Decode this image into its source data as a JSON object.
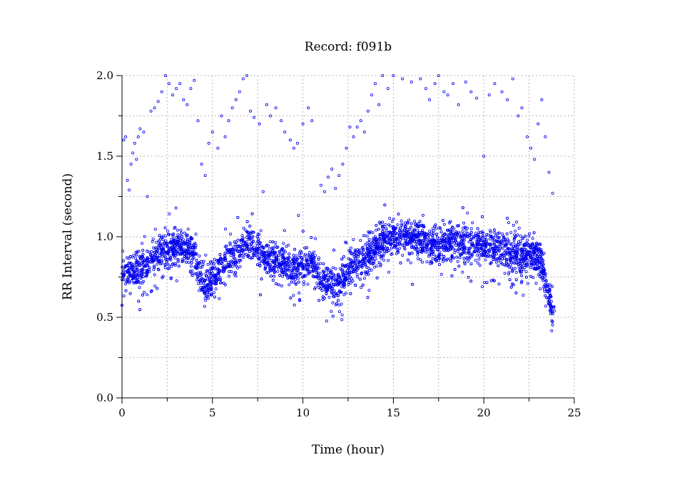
{
  "chart_data": {
    "type": "scatter",
    "title": "Record:  f091b",
    "xlabel": "Time (hour)",
    "ylabel": "RR Interval (second)",
    "xlim": [
      0,
      25
    ],
    "ylim": [
      0,
      2.0
    ],
    "x_ticks": [
      "0",
      "5",
      "10",
      "15",
      "20",
      "25"
    ],
    "y_ticks": [
      "0.0",
      "0.5",
      "1.0",
      "1.5",
      "2.0"
    ],
    "grid": true,
    "marker_color": "#0000ee",
    "series": [
      {
        "trend": [
          [
            0.0,
            0.77
          ],
          [
            0.5,
            0.79
          ],
          [
            1.0,
            0.8
          ],
          [
            1.5,
            0.85
          ],
          [
            2.0,
            0.9
          ],
          [
            2.5,
            0.92
          ],
          [
            3.0,
            0.94
          ],
          [
            3.5,
            0.92
          ],
          [
            4.0,
            0.9
          ],
          [
            4.3,
            0.78
          ],
          [
            4.6,
            0.68
          ],
          [
            5.0,
            0.75
          ],
          [
            5.5,
            0.83
          ],
          [
            6.0,
            0.88
          ],
          [
            6.5,
            0.93
          ],
          [
            7.0,
            0.97
          ],
          [
            7.5,
            0.92
          ],
          [
            8.0,
            0.86
          ],
          [
            8.5,
            0.87
          ],
          [
            9.0,
            0.84
          ],
          [
            9.5,
            0.8
          ],
          [
            10.0,
            0.83
          ],
          [
            10.5,
            0.84
          ],
          [
            11.0,
            0.74
          ],
          [
            11.5,
            0.71
          ],
          [
            12.0,
            0.7
          ],
          [
            12.5,
            0.8
          ],
          [
            13.0,
            0.85
          ],
          [
            13.5,
            0.87
          ],
          [
            14.0,
            0.93
          ],
          [
            14.5,
            0.98
          ],
          [
            15.0,
            1.0
          ],
          [
            15.5,
            1.01
          ],
          [
            16.0,
            0.99
          ],
          [
            16.5,
            0.98
          ],
          [
            17.0,
            0.96
          ],
          [
            17.5,
            0.94
          ],
          [
            18.0,
            0.97
          ],
          [
            18.5,
            0.96
          ],
          [
            19.0,
            0.96
          ],
          [
            19.5,
            0.94
          ],
          [
            20.0,
            0.95
          ],
          [
            20.5,
            0.93
          ],
          [
            21.0,
            0.94
          ],
          [
            21.5,
            0.9
          ],
          [
            22.0,
            0.88
          ],
          [
            22.5,
            0.91
          ],
          [
            23.0,
            0.88
          ],
          [
            23.3,
            0.8
          ],
          [
            23.6,
            0.65
          ],
          [
            23.9,
            0.5
          ]
        ],
        "outliers": [
          [
            0.1,
            1.6
          ],
          [
            0.2,
            1.62
          ],
          [
            0.3,
            1.35
          ],
          [
            0.4,
            1.29
          ],
          [
            0.5,
            1.45
          ],
          [
            0.6,
            1.52
          ],
          [
            0.7,
            1.58
          ],
          [
            0.8,
            1.48
          ],
          [
            0.9,
            1.62
          ],
          [
            1.0,
            1.67
          ],
          [
            1.2,
            1.65
          ],
          [
            1.4,
            1.25
          ],
          [
            1.6,
            1.78
          ],
          [
            1.8,
            1.8
          ],
          [
            2.0,
            1.84
          ],
          [
            2.2,
            1.9
          ],
          [
            2.4,
            2.0
          ],
          [
            2.6,
            1.95
          ],
          [
            2.8,
            1.88
          ],
          [
            3.0,
            1.92
          ],
          [
            3.2,
            1.95
          ],
          [
            3.4,
            1.85
          ],
          [
            3.6,
            1.82
          ],
          [
            3.8,
            1.92
          ],
          [
            4.0,
            1.97
          ],
          [
            4.2,
            1.72
          ],
          [
            4.4,
            1.45
          ],
          [
            4.6,
            1.38
          ],
          [
            4.8,
            1.58
          ],
          [
            5.0,
            1.65
          ],
          [
            5.3,
            1.55
          ],
          [
            5.5,
            1.75
          ],
          [
            5.7,
            1.62
          ],
          [
            5.9,
            1.72
          ],
          [
            6.1,
            1.8
          ],
          [
            6.3,
            1.85
          ],
          [
            6.5,
            1.9
          ],
          [
            6.7,
            1.98
          ],
          [
            6.9,
            2.0
          ],
          [
            7.1,
            1.78
          ],
          [
            7.3,
            1.74
          ],
          [
            7.6,
            1.7
          ],
          [
            7.8,
            1.28
          ],
          [
            8.0,
            1.82
          ],
          [
            8.2,
            1.75
          ],
          [
            8.5,
            1.8
          ],
          [
            8.8,
            1.72
          ],
          [
            9.0,
            1.65
          ],
          [
            9.3,
            1.6
          ],
          [
            9.5,
            1.55
          ],
          [
            9.7,
            1.58
          ],
          [
            10.0,
            1.7
          ],
          [
            10.3,
            1.8
          ],
          [
            10.5,
            1.72
          ],
          [
            11.0,
            1.32
          ],
          [
            11.2,
            1.28
          ],
          [
            11.4,
            1.37
          ],
          [
            11.6,
            1.42
          ],
          [
            11.8,
            1.3
          ],
          [
            12.0,
            1.38
          ],
          [
            12.2,
            1.45
          ],
          [
            12.4,
            1.55
          ],
          [
            12.6,
            1.68
          ],
          [
            12.8,
            1.62
          ],
          [
            13.0,
            1.68
          ],
          [
            13.2,
            1.72
          ],
          [
            13.4,
            1.65
          ],
          [
            13.6,
            1.78
          ],
          [
            13.8,
            1.88
          ],
          [
            14.0,
            1.95
          ],
          [
            14.2,
            1.82
          ],
          [
            14.4,
            2.0
          ],
          [
            14.7,
            1.92
          ],
          [
            15.0,
            2.0
          ],
          [
            15.5,
            1.98
          ],
          [
            16.0,
            1.96
          ],
          [
            16.5,
            1.98
          ],
          [
            16.8,
            1.92
          ],
          [
            17.0,
            1.85
          ],
          [
            17.3,
            1.95
          ],
          [
            17.5,
            2.0
          ],
          [
            17.8,
            1.9
          ],
          [
            18.0,
            1.88
          ],
          [
            18.3,
            1.95
          ],
          [
            18.6,
            1.82
          ],
          [
            19.0,
            1.96
          ],
          [
            19.3,
            1.9
          ],
          [
            19.6,
            1.86
          ],
          [
            20.0,
            1.5
          ],
          [
            20.3,
            1.88
          ],
          [
            20.6,
            1.95
          ],
          [
            21.0,
            1.9
          ],
          [
            21.3,
            1.85
          ],
          [
            21.6,
            1.98
          ],
          [
            21.9,
            1.75
          ],
          [
            22.1,
            1.8
          ],
          [
            22.4,
            1.62
          ],
          [
            22.6,
            1.55
          ],
          [
            22.8,
            1.48
          ],
          [
            23.0,
            1.7
          ],
          [
            23.2,
            1.85
          ],
          [
            23.4,
            1.62
          ],
          [
            23.6,
            1.4
          ],
          [
            23.8,
            1.27
          ]
        ]
      }
    ]
  }
}
